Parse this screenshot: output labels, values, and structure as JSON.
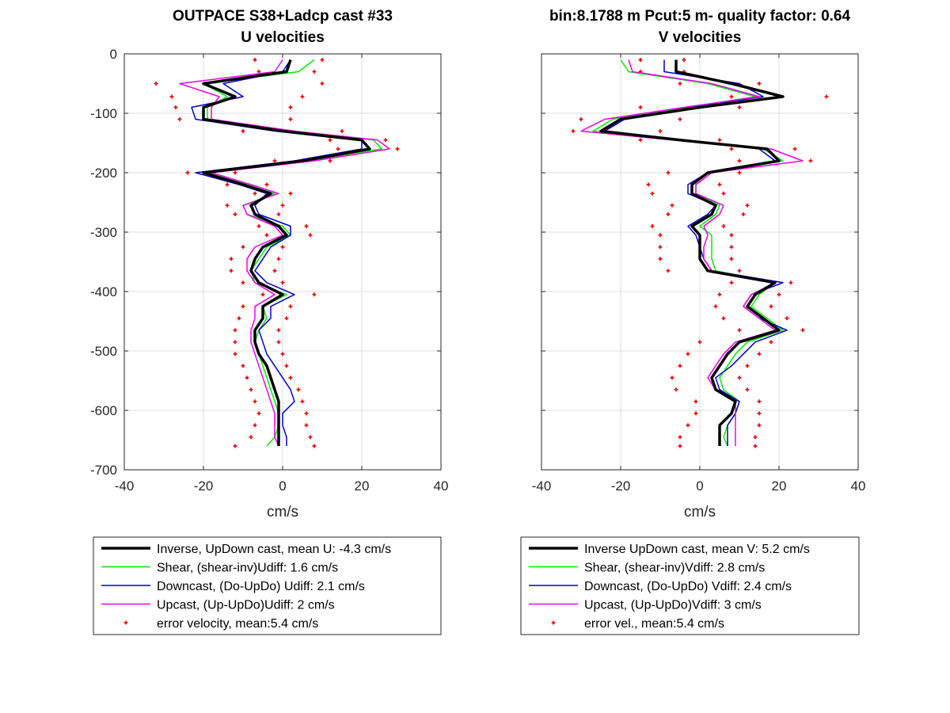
{
  "chart_data": [
    {
      "type": "line",
      "title": [
        "OUTPACE S38+Ladcp cast #33",
        "U velocities"
      ],
      "xlabel": "cm/s",
      "ylabel": "",
      "xlim": [
        -40,
        40
      ],
      "ylim": [
        -700,
        0
      ],
      "xticks": [
        "-40",
        "-20",
        "0",
        "20",
        "40"
      ],
      "yticks": [
        "0",
        "-100",
        "-200",
        "-300",
        "-400",
        "-500",
        "-600",
        "-700"
      ],
      "grid": true,
      "legend_position": "below",
      "depth": [
        -10,
        -30,
        -50,
        -72,
        -90,
        -110,
        -130,
        -145,
        -160,
        -180,
        -200,
        -220,
        -235,
        -255,
        -270,
        -290,
        -305,
        -325,
        -345,
        -365,
        -385,
        -405,
        -425,
        -445,
        -465,
        -485,
        -505,
        -525,
        -545,
        -565,
        -585,
        -605,
        -625,
        -645,
        -660
      ],
      "series": [
        {
          "name": "Inverse, UpDown cast, mean U:  -4.3 cm/s",
          "color": "#000000",
          "width": 3.5,
          "values": [
            2,
            1,
            -20,
            -12,
            -20,
            -20,
            0,
            20,
            22,
            5,
            -20,
            -10,
            -3,
            -8,
            -7,
            -1,
            1,
            -5,
            -7,
            -8,
            -6,
            0,
            -5,
            -5,
            -7,
            -7,
            -6,
            -4,
            -3,
            -2,
            -1,
            -1,
            -1,
            -1,
            -1
          ]
        },
        {
          "name": "Shear, (shear-inv)Udiff:  1.6 cm/s",
          "color": "#00ee00",
          "width": 1.5,
          "values": [
            8,
            4,
            -20,
            -14,
            -19,
            -19,
            2,
            23,
            25,
            6,
            -19,
            -9,
            -2,
            -10,
            -9,
            0,
            2,
            -4,
            -6,
            -8,
            -7,
            1,
            -5,
            -4,
            -6,
            -7,
            -6,
            -5,
            -4,
            -3,
            -2,
            -1,
            -1,
            -2,
            -4
          ]
        },
        {
          "name": "Downcast, (Do-UpDo) Udiff:  2.1 cm/s",
          "color": "#0000cc",
          "width": 1.5,
          "values": [
            2,
            0,
            -15,
            -10,
            -23,
            -22,
            -2,
            20,
            20,
            3,
            -22,
            -11,
            -4,
            -7,
            -6,
            2,
            2,
            -3,
            -5,
            -7,
            -4,
            3,
            -3,
            -3,
            -6,
            -5,
            -4,
            -2,
            0,
            2,
            3,
            0,
            0,
            1,
            1
          ]
        },
        {
          "name": "Upcast, (Up-UpDo)Udiff:  2 cm/s",
          "color": "#ee00ee",
          "width": 1.5,
          "values": [
            0,
            -2,
            -26,
            -16,
            -18,
            -18,
            3,
            24,
            27,
            8,
            -18,
            -8,
            -1,
            -10,
            -9,
            -2,
            0,
            -7,
            -9,
            -9,
            -7,
            -2,
            -7,
            -7,
            -8,
            -8,
            -7,
            -6,
            -5,
            -4,
            -3,
            -2,
            -2,
            -2,
            -1
          ]
        },
        {
          "name": "error velocity, mean:5.4 cm/s",
          "color": "#ee0000",
          "marker": true,
          "values": [
            -7,
            -6,
            -32,
            -28,
            -27,
            -26,
            -10,
            12,
            14,
            -2,
            -24,
            -14,
            -7,
            -14,
            -12,
            -6,
            -4,
            -10,
            -13,
            -13,
            -10,
            -5,
            -10,
            -11,
            -12,
            -12,
            -12,
            -10,
            -9,
            -8,
            -7,
            -6,
            -7,
            -8,
            -12
          ],
          "values2": [
            10,
            8,
            10,
            5,
            2,
            2,
            15,
            26,
            29,
            12,
            -12,
            -4,
            2,
            0,
            -1,
            6,
            7,
            0,
            -1,
            -2,
            0,
            8,
            2,
            1,
            -1,
            -1,
            0,
            1,
            2,
            4,
            5,
            6,
            6,
            7,
            8
          ]
        }
      ],
      "legend": [
        "Inverse, UpDown cast, mean U:  -4.3 cm/s",
        "Shear, (shear-inv)Udiff:  1.6 cm/s",
        "Downcast, (Do-UpDo) Udiff:  2.1 cm/s",
        "Upcast, (Up-UpDo)Udiff:  2 cm/s",
        "error velocity, mean:5.4 cm/s"
      ]
    },
    {
      "type": "line",
      "title": [
        "bin:8.1788 m  Pcut:5 m- quality factor:  0.64",
        "V velocities"
      ],
      "xlabel": "cm/s",
      "ylabel": "",
      "xlim": [
        -40,
        40
      ],
      "ylim": [
        -700,
        0
      ],
      "xticks": [
        "-40",
        "-20",
        "0",
        "20",
        "40"
      ],
      "yticks": [],
      "grid": true,
      "legend_position": "below",
      "depth": [
        -10,
        -30,
        -50,
        -72,
        -90,
        -110,
        -130,
        -145,
        -160,
        -180,
        -200,
        -220,
        -235,
        -255,
        -270,
        -290,
        -305,
        -325,
        -345,
        -365,
        -385,
        -405,
        -425,
        -445,
        -465,
        -485,
        -505,
        -525,
        -545,
        -565,
        -585,
        -605,
        -625,
        -645,
        -660
      ],
      "series": [
        {
          "name": "Inverse UpDown cast, mean V:  5.2 cm/s",
          "color": "#000000",
          "width": 3.5,
          "values": [
            -6,
            -6,
            8,
            21,
            0,
            -20,
            -25,
            -5,
            17,
            20,
            2,
            -2,
            -2,
            4,
            3,
            -2,
            0,
            0,
            0,
            2,
            19,
            14,
            12,
            16,
            20,
            10,
            7,
            5,
            3,
            4,
            9,
            8,
            5,
            5,
            5
          ]
        },
        {
          "name": "Shear, (shear-inv)Vdiff:  2.8 cm/s",
          "color": "#00ee00",
          "width": 1.5,
          "values": [
            -20,
            -18,
            2,
            14,
            -3,
            -22,
            -27,
            -6,
            16,
            21,
            3,
            -1,
            -1,
            5,
            4,
            0,
            3,
            3,
            3,
            4,
            19,
            15,
            13,
            17,
            21,
            12,
            9,
            7,
            5,
            6,
            10,
            9,
            7,
            6,
            7
          ]
        },
        {
          "name": "Downcast, (Do-UpDo) Vdiff:  2.4 cm/s",
          "color": "#0000cc",
          "width": 1.5,
          "values": [
            -9,
            -9,
            10,
            16,
            -2,
            -19,
            -24,
            -4,
            15,
            19,
            2,
            -3,
            -3,
            4,
            2,
            -3,
            -1,
            0,
            1,
            3,
            21,
            13,
            11,
            15,
            22,
            14,
            11,
            8,
            4,
            5,
            10,
            9,
            7,
            7,
            7
          ]
        },
        {
          "name": "Upcast, (Up-UpDo)Vdiff:  3 cm/s",
          "color": "#ee00ee",
          "width": 1.5,
          "values": [
            -18,
            -17,
            3,
            15,
            -4,
            -24,
            -30,
            -7,
            18,
            26,
            3,
            -1,
            -1,
            6,
            5,
            1,
            2,
            1,
            1,
            3,
            19,
            13,
            11,
            15,
            19,
            9,
            6,
            4,
            2,
            4,
            9,
            9,
            9,
            9,
            9
          ]
        },
        {
          "name": "error vel., mean:5.4 cm/s",
          "color": "#ee0000",
          "marker": true,
          "values": [
            -15,
            -15,
            -5,
            8,
            -15,
            -30,
            -32,
            -15,
            8,
            10,
            -8,
            -13,
            -12,
            -7,
            -8,
            -12,
            -10,
            -10,
            -10,
            -8,
            8,
            5,
            4,
            6,
            10,
            0,
            -3,
            -5,
            -7,
            -6,
            -1,
            -1,
            -3,
            -5,
            -5
          ],
          "values2": [
            -4,
            -4,
            15,
            32,
            10,
            -5,
            -10,
            5,
            24,
            28,
            10,
            5,
            6,
            12,
            11,
            6,
            8,
            8,
            8,
            10,
            23,
            20,
            18,
            22,
            26,
            18,
            15,
            12,
            10,
            12,
            15,
            15,
            15,
            14,
            14
          ]
        }
      ],
      "legend": [
        "Inverse UpDown cast, mean V:  5.2 cm/s",
        "Shear, (shear-inv)Vdiff:  2.8 cm/s",
        "Downcast, (Do-UpDo) Vdiff:  2.4 cm/s",
        "Upcast, (Up-UpDo)Vdiff:  3 cm/s",
        "error vel., mean:5.4 cm/s"
      ]
    }
  ]
}
